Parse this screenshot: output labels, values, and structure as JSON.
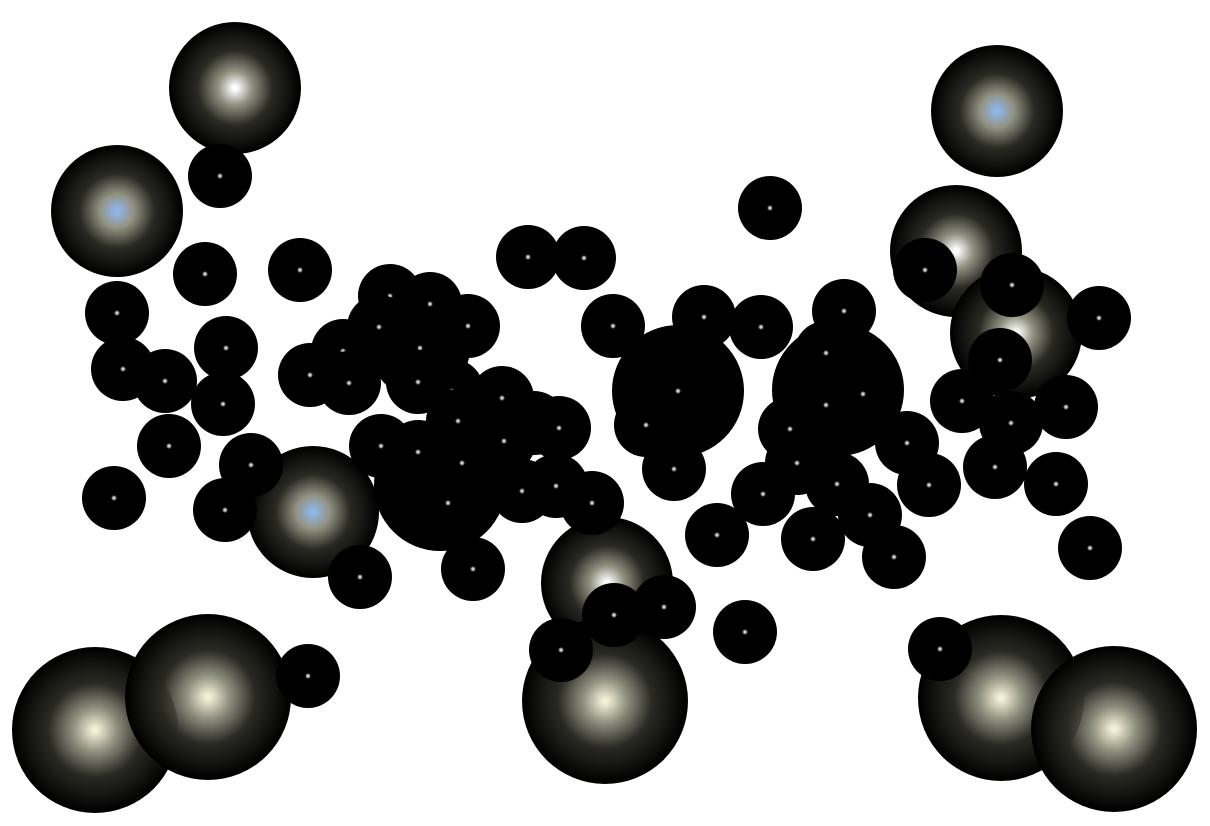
{
  "scene": "star-field",
  "colors": {
    "background": "#ffffff",
    "sphere": "#000000",
    "glow_warm": "#f4f0d6",
    "glow_white": "#ffffff",
    "glow_blue": "#8fb6e8",
    "pin_small": "#cfcfcf"
  }
}
